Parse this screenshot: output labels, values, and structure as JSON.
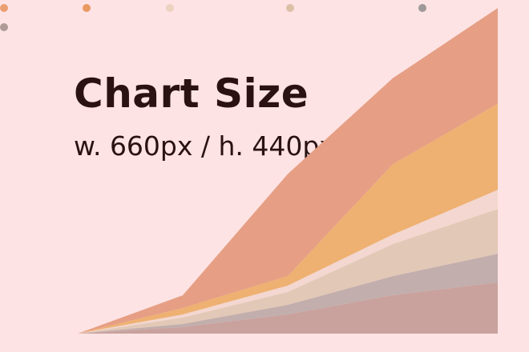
{
  "colors": {
    "background": "#fde3e4",
    "text": "#2a1212",
    "series": [
      "#c9a19d",
      "#c2aeac",
      "#e2c8b6",
      "#f3d7d0",
      "#eeb172",
      "#e69f84"
    ]
  },
  "chart_data": {
    "type": "area",
    "stacked": true,
    "title": "Chart Size",
    "subtitle": "w. 660px / h. 440px",
    "x": [
      0,
      1,
      2,
      3,
      4
    ],
    "ylim": [
      0,
      100
    ],
    "grid": false,
    "axes_visible": false,
    "legend": {
      "placement": "top",
      "style": "dots",
      "labels_visible": false
    },
    "series": [
      {
        "values": [
          0,
          2,
          6,
          12,
          16
        ]
      },
      {
        "values": [
          0,
          1,
          3,
          6,
          9
        ]
      },
      {
        "values": [
          0,
          2,
          4,
          10,
          14
        ]
      },
      {
        "values": [
          0,
          1,
          2,
          3,
          6
        ]
      },
      {
        "values": [
          0,
          2,
          3,
          22,
          27
        ]
      },
      {
        "values": [
          0,
          4,
          32,
          27,
          30
        ]
      }
    ]
  }
}
